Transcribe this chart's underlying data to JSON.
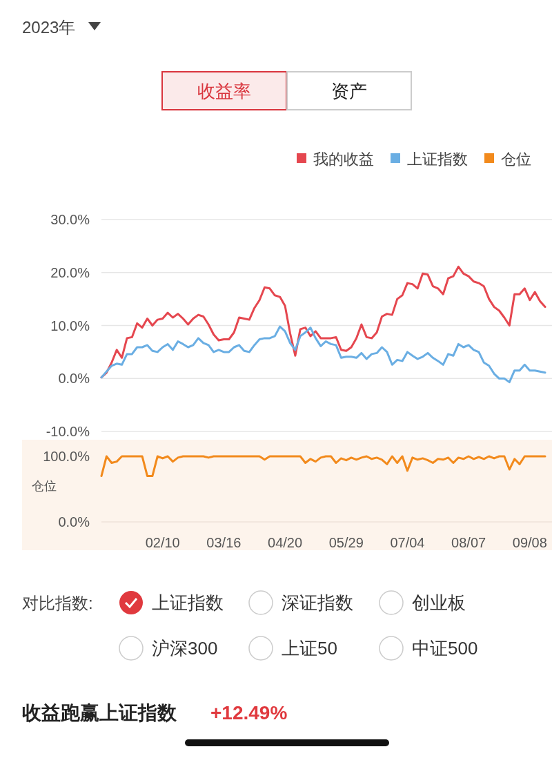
{
  "chart_data": [
    {
      "type": "other",
      "annotations": [
        "2023年",
        "收益率",
        "资产"
      ]
    },
    {
      "type": "line",
      "categories": [
        null,
        null,
        null,
        null,
        null,
        null,
        null,
        null,
        null,
        null,
        null,
        null,
        null,
        null,
        null,
        null,
        null,
        null,
        null,
        null,
        null,
        null,
        null,
        null,
        null,
        null,
        null,
        null,
        null,
        null,
        null,
        null,
        null,
        null,
        null,
        null,
        null,
        null,
        null,
        null,
        null,
        null,
        null,
        null,
        null,
        null,
        null,
        null,
        null,
        null,
        null,
        null,
        null,
        null,
        null,
        null,
        null,
        null,
        null,
        null,
        null,
        null,
        null,
        null,
        null,
        null,
        null,
        null,
        null,
        null,
        null,
        null,
        null,
        null,
        null,
        null,
        null,
        null,
        null,
        null,
        null,
        null,
        null,
        null,
        null,
        null,
        null,
        null
      ],
      "ylim": [
        -10,
        30
      ],
      "yticks": [
        {
          "value": 30,
          "label": "30.0%"
        },
        {
          "value": 20,
          "label": "20.0%"
        },
        {
          "value": 10,
          "label": "10.0%"
        },
        {
          "value": 0,
          "label": "0.0%"
        },
        {
          "value": -10,
          "label": "-10.0%"
        }
      ],
      "grid": "y",
      "legend": "top right",
      "tick_labels": "y",
      "series": [
        {
          "name": "我的收益",
          "color": "#e5474f",
          "values": [
            0.2,
            1.1,
            3.0,
            5.4,
            3.9,
            7.6,
            7.8,
            10.4,
            9.6,
            11.3,
            10.0,
            11.1,
            11.3,
            12.4,
            11.5,
            12.2,
            11.3,
            10.2,
            11.3,
            12.0,
            11.7,
            10.2,
            8.3,
            7.2,
            7.4,
            7.4,
            8.7,
            11.5,
            11.3,
            11.1,
            13.3,
            14.8,
            17.2,
            17.0,
            15.7,
            15.4,
            13.7,
            8.5,
            4.3,
            9.3,
            9.6,
            8.0,
            8.9,
            7.6,
            7.6,
            7.6,
            7.8,
            5.4,
            5.2,
            5.9,
            7.6,
            10.2,
            7.8,
            7.6,
            8.7,
            11.7,
            12.2,
            12.0,
            15.0,
            15.7,
            18.0,
            17.8,
            17.0,
            19.8,
            19.6,
            17.4,
            17.0,
            15.9,
            18.9,
            19.3,
            21.1,
            19.8,
            19.3,
            18.3,
            18.0,
            17.4,
            15.0,
            13.5,
            12.8,
            11.5,
            10.0,
            15.9,
            15.9,
            17.0,
            14.8,
            16.3,
            14.6,
            13.5
          ]
        },
        {
          "name": "上证指数",
          "color": "#6aaee3",
          "values": [
            0.2,
            1.3,
            2.4,
            2.8,
            2.6,
            4.6,
            4.6,
            5.9,
            5.9,
            6.3,
            5.2,
            5.0,
            5.9,
            6.5,
            5.4,
            7.0,
            6.5,
            5.9,
            6.3,
            7.6,
            6.7,
            6.3,
            5.0,
            5.4,
            5.0,
            5.0,
            5.9,
            6.3,
            5.2,
            5.0,
            6.3,
            7.4,
            7.6,
            7.6,
            8.0,
            9.8,
            8.9,
            6.7,
            5.4,
            8.0,
            8.7,
            9.6,
            7.6,
            6.1,
            7.0,
            6.5,
            6.3,
            3.9,
            4.1,
            4.1,
            3.9,
            4.8,
            3.7,
            4.6,
            4.8,
            5.9,
            5.0,
            2.6,
            3.5,
            3.3,
            5.0,
            4.3,
            3.7,
            4.1,
            4.8,
            3.9,
            3.3,
            2.6,
            4.6,
            4.3,
            6.5,
            5.9,
            6.3,
            5.4,
            5.0,
            3.0,
            2.4,
            0.9,
            0.0,
            0.0,
            -0.7,
            1.5,
            1.5,
            2.6,
            1.5,
            1.5,
            1.3,
            1.1
          ]
        }
      ]
    },
    {
      "type": "line",
      "categories": [
        null,
        null,
        null,
        null,
        null,
        null,
        null,
        null,
        null,
        null,
        null,
        null,
        "02/10",
        null,
        null,
        null,
        null,
        null,
        null,
        null,
        null,
        null,
        null,
        null,
        "03/16",
        null,
        null,
        null,
        null,
        null,
        null,
        null,
        null,
        null,
        null,
        null,
        "04/20",
        null,
        null,
        null,
        null,
        null,
        null,
        null,
        null,
        null,
        null,
        null,
        "05/29",
        null,
        null,
        null,
        null,
        null,
        null,
        null,
        null,
        null,
        null,
        null,
        "07/04",
        null,
        null,
        null,
        null,
        null,
        null,
        null,
        null,
        null,
        null,
        null,
        "08/07",
        null,
        null,
        null,
        null,
        null,
        null,
        null,
        null,
        null,
        null,
        null,
        "09/08",
        null,
        null,
        null
      ],
      "ylim": [
        0,
        100
      ],
      "yticks": [
        {
          "value": 100,
          "label": "100.0%"
        },
        {
          "value": 0,
          "label": "0.0%"
        }
      ],
      "ylabel": "仓位",
      "legend": "top right",
      "series": [
        {
          "name": "仓位",
          "color": "#f28a1c",
          "values": [
            70,
            100,
            90,
            92,
            100,
            100,
            100,
            100,
            100,
            70,
            70,
            100,
            97,
            100,
            92,
            98,
            100,
            100,
            100,
            100,
            100,
            98,
            100,
            100,
            100,
            100,
            100,
            100,
            100,
            100,
            100,
            100,
            95,
            100,
            100,
            100,
            100,
            100,
            100,
            100,
            90,
            96,
            92,
            98,
            100,
            100,
            90,
            97,
            94,
            98,
            95,
            98,
            100,
            96,
            98,
            95,
            88,
            100,
            90,
            100,
            78,
            98,
            95,
            97,
            94,
            90,
            96,
            95,
            98,
            90,
            98,
            96,
            100,
            96,
            99,
            96,
            100,
            97,
            100,
            100,
            80,
            96,
            88,
            100,
            100,
            100,
            100,
            100
          ]
        }
      ]
    },
    {
      "type": "other",
      "annotations": [
        "对比指数:",
        "上证指数",
        "深证指数",
        "创业板",
        "沪深300",
        "上证50",
        "中证500",
        "收益跑赢上证指数",
        "+12.49%"
      ]
    }
  ]
}
